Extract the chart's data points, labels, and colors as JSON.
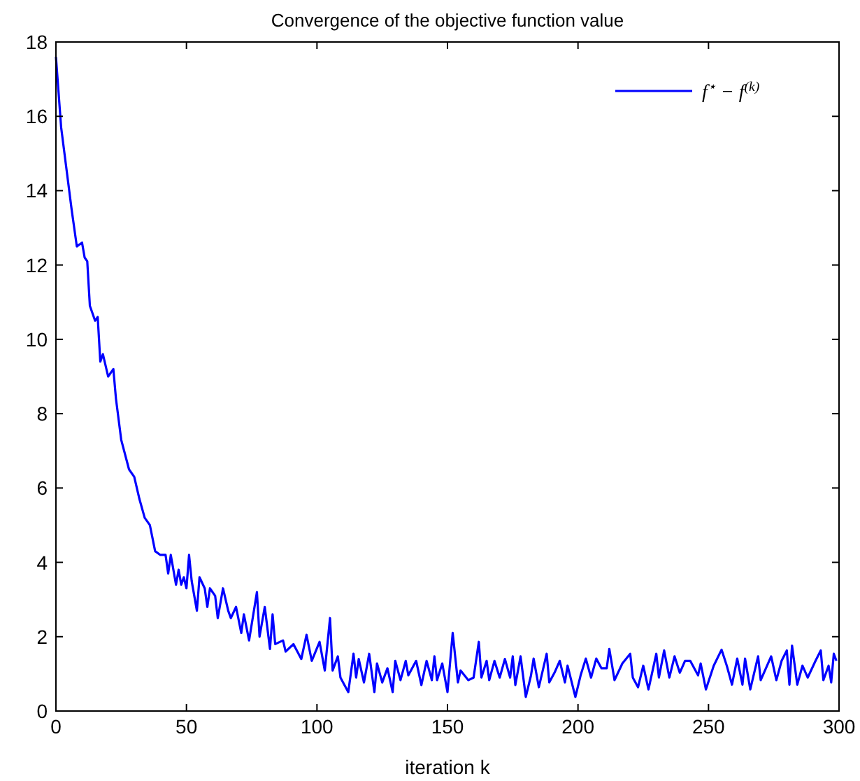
{
  "chart_data": {
    "type": "line",
    "title": "Convergence of the objective function value",
    "xlabel": "iteration k",
    "x": [
      0,
      2,
      6,
      8,
      10,
      11,
      12,
      13,
      15,
      16,
      17,
      18,
      20,
      22,
      23,
      25,
      28,
      30,
      32,
      34,
      36,
      38,
      40,
      42,
      43,
      44,
      46,
      47,
      48,
      49,
      50,
      51,
      52,
      54,
      55,
      57,
      58,
      59,
      61,
      62,
      64,
      66,
      67,
      69,
      71,
      72,
      74,
      77,
      78,
      80,
      82,
      83,
      84,
      87,
      88,
      91,
      94,
      96,
      98,
      101,
      103,
      105,
      106,
      108,
      109,
      112,
      114,
      115,
      116,
      118,
      120,
      122,
      123,
      125,
      127,
      129,
      130,
      132,
      134,
      135,
      138,
      140,
      142,
      144,
      145,
      146,
      148,
      150,
      152,
      154,
      155,
      158,
      160,
      162,
      163,
      165,
      166,
      168,
      170,
      172,
      174,
      175,
      176,
      178,
      180,
      182,
      183,
      185,
      188,
      189,
      191,
      193,
      195,
      196,
      199,
      201,
      203,
      205,
      207,
      209,
      211,
      212,
      214,
      217,
      220,
      221,
      223,
      225,
      227,
      230,
      231,
      233,
      235,
      237,
      239,
      241,
      243,
      246,
      247,
      249,
      252,
      255,
      257,
      259,
      261,
      263,
      264,
      266,
      269,
      270,
      274,
      276,
      278,
      280,
      281,
      282,
      284,
      286,
      288,
      291,
      293,
      294,
      296,
      297,
      298,
      299
    ],
    "series": [
      {
        "name": "f$^{⋆}$ − f$^{(k)}$",
        "color": "#0000ff",
        "values": [
          17.6,
          15.7,
          13.5,
          12.5,
          12.6,
          12.2,
          12.1,
          10.9,
          10.5,
          10.6,
          9.4,
          9.6,
          9.0,
          9.2,
          8.4,
          7.3,
          6.5,
          6.3,
          5.7,
          5.2,
          5.0,
          4.3,
          4.2,
          4.2,
          3.7,
          4.2,
          3.4,
          3.8,
          3.4,
          3.6,
          3.3,
          4.2,
          3.5,
          2.7,
          3.6,
          3.3,
          2.8,
          3.3,
          3.1,
          2.5,
          3.3,
          2.7,
          2.5,
          2.8,
          2.1,
          2.6,
          1.9,
          3.2,
          2.0,
          2.8,
          1.67,
          2.6,
          1.8,
          1.9,
          1.6,
          1.8,
          1.4,
          2.05,
          1.35,
          1.86,
          1.09,
          2.5,
          1.09,
          1.47,
          0.9,
          0.51,
          1.54,
          0.9,
          1.4,
          0.77,
          1.54,
          0.51,
          1.28,
          0.77,
          1.15,
          0.51,
          1.35,
          0.83,
          1.35,
          0.96,
          1.35,
          0.7,
          1.35,
          0.83,
          1.47,
          0.83,
          1.28,
          0.51,
          2.1,
          0.77,
          1.09,
          0.83,
          0.9,
          1.86,
          0.9,
          1.35,
          0.83,
          1.35,
          0.9,
          1.4,
          0.9,
          1.47,
          0.7,
          1.47,
          0.38,
          0.96,
          1.41,
          0.64,
          1.54,
          0.77,
          1.03,
          1.35,
          0.77,
          1.22,
          0.38,
          0.96,
          1.41,
          0.9,
          1.41,
          1.15,
          1.15,
          1.67,
          0.83,
          1.28,
          1.54,
          0.9,
          0.64,
          1.22,
          0.58,
          1.54,
          0.9,
          1.63,
          0.9,
          1.47,
          1.03,
          1.35,
          1.35,
          0.96,
          1.28,
          0.58,
          1.22,
          1.65,
          1.22,
          0.71,
          1.41,
          0.71,
          1.41,
          0.58,
          1.47,
          0.83,
          1.47,
          0.83,
          1.35,
          1.63,
          0.71,
          1.76,
          0.71,
          1.22,
          0.9,
          1.35,
          1.63,
          0.83,
          1.22,
          0.77,
          1.54,
          1.35
        ]
      }
    ],
    "xlim": [
      0,
      300
    ],
    "xticks": [
      0,
      50,
      100,
      150,
      200,
      250,
      300
    ],
    "ylim": [
      0,
      18
    ],
    "yticks": [
      0,
      2,
      4,
      6,
      8,
      10,
      12,
      14,
      16,
      18
    ],
    "grid": false,
    "legend": "top right",
    "line_style": "solid",
    "marker": "none"
  }
}
